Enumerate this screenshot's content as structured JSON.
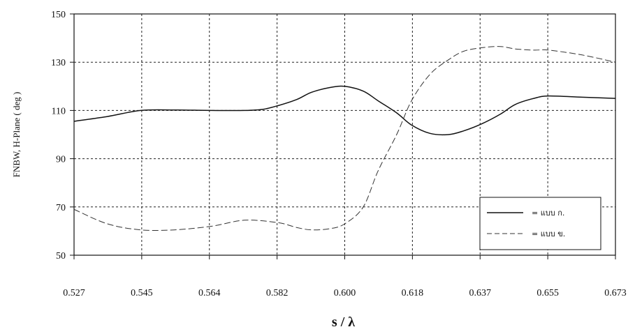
{
  "chart_data": {
    "type": "line",
    "title": "",
    "xlabel": "s / λ",
    "ylabel": "FNBW, H-Plane ( deg )",
    "x_ticks": [
      "0.527",
      "0.545",
      "0.564",
      "0.582",
      "0.600",
      "0.618",
      "0.637",
      "0.655",
      "0.673"
    ],
    "xlim": [
      0.527,
      0.673
    ],
    "y_ticks": [
      "150",
      "130",
      "110",
      "90",
      "70",
      "50"
    ],
    "ylim": [
      50,
      150
    ],
    "grid": true,
    "legend_position": "bottom-right",
    "series": [
      {
        "name": "แบบ ก.",
        "style": "solid",
        "color": "#111111",
        "x": [
          0.527,
          0.536,
          0.545,
          0.554,
          0.564,
          0.573,
          0.578,
          0.582,
          0.587,
          0.591,
          0.596,
          0.6,
          0.605,
          0.609,
          0.614,
          0.618,
          0.623,
          0.628,
          0.632,
          0.637,
          0.642,
          0.646,
          0.651,
          0.655,
          0.664,
          0.673
        ],
        "y": [
          105.5,
          107.5,
          110,
          110.2,
          110,
          110,
          110.5,
          112,
          114.5,
          117.5,
          119.5,
          120,
          118,
          114,
          109,
          104,
          100.5,
          100,
          101.5,
          104.5,
          108.5,
          112.5,
          115,
          116,
          115.5,
          115
        ]
      },
      {
        "name": "แบบ ข.",
        "style": "dashed",
        "color": "#333333",
        "x": [
          0.527,
          0.536,
          0.545,
          0.554,
          0.564,
          0.573,
          0.582,
          0.587,
          0.591,
          0.596,
          0.6,
          0.605,
          0.609,
          0.614,
          0.618,
          0.623,
          0.628,
          0.632,
          0.637,
          0.642,
          0.646,
          0.651,
          0.655,
          0.664,
          0.673
        ],
        "y": [
          69,
          63,
          60.5,
          60.5,
          62,
          64.5,
          63.5,
          61.5,
          60.5,
          61,
          63,
          70,
          85,
          100,
          114,
          125,
          131,
          134.5,
          136,
          136.5,
          135.5,
          135,
          135,
          133,
          130
        ]
      }
    ]
  },
  "legend": {
    "items": [
      "= แบบ ก.",
      "= แบบ ข."
    ]
  }
}
